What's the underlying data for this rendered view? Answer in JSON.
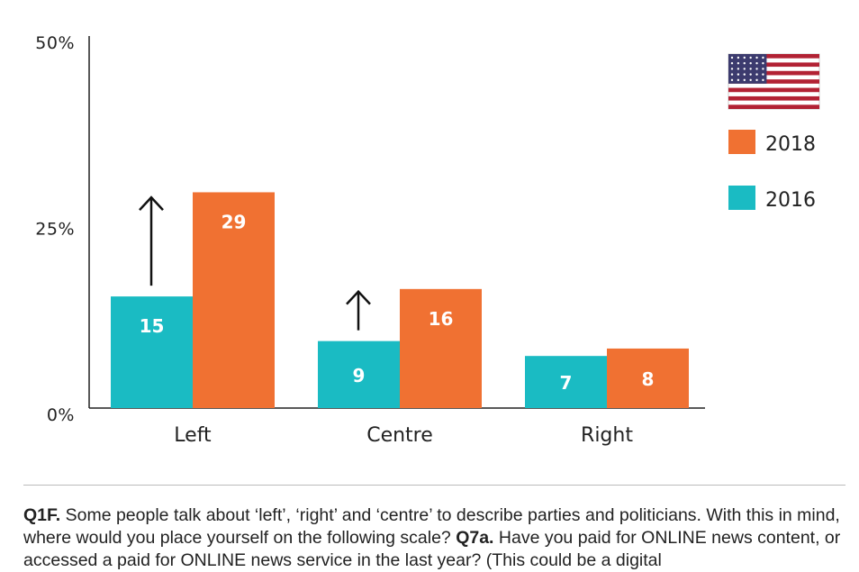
{
  "chart_data": {
    "type": "bar",
    "categories": [
      "Left",
      "Centre",
      "Right"
    ],
    "series": [
      {
        "name": "2016",
        "values": [
          15,
          9,
          7
        ],
        "color": "#1ABBC3"
      },
      {
        "name": "2018",
        "values": [
          29,
          16,
          8
        ],
        "color": "#F07132"
      }
    ],
    "ylim": [
      0,
      50
    ],
    "yticks": [
      "0%",
      "25%",
      "50%"
    ],
    "ytick_values": [
      0,
      25,
      50
    ],
    "legend_position": "top-right",
    "legend_flag": "us-flag-icon",
    "grid": false,
    "annotations": [
      "up-arrow Left",
      "up-arrow Centre"
    ]
  },
  "footnote": {
    "q1_label": "Q1F.",
    "q1_text": " Some people talk about ‘left’, ‘right’ and ‘centre’ to describe parties and politicians. With this in mind, where would you place yourself on the following scale? ",
    "q7_label": "Q7a.",
    "q7_text": " Have you paid for ONLINE news content, or accessed a paid for ONLINE news service in the last year? (This could be a digital"
  }
}
